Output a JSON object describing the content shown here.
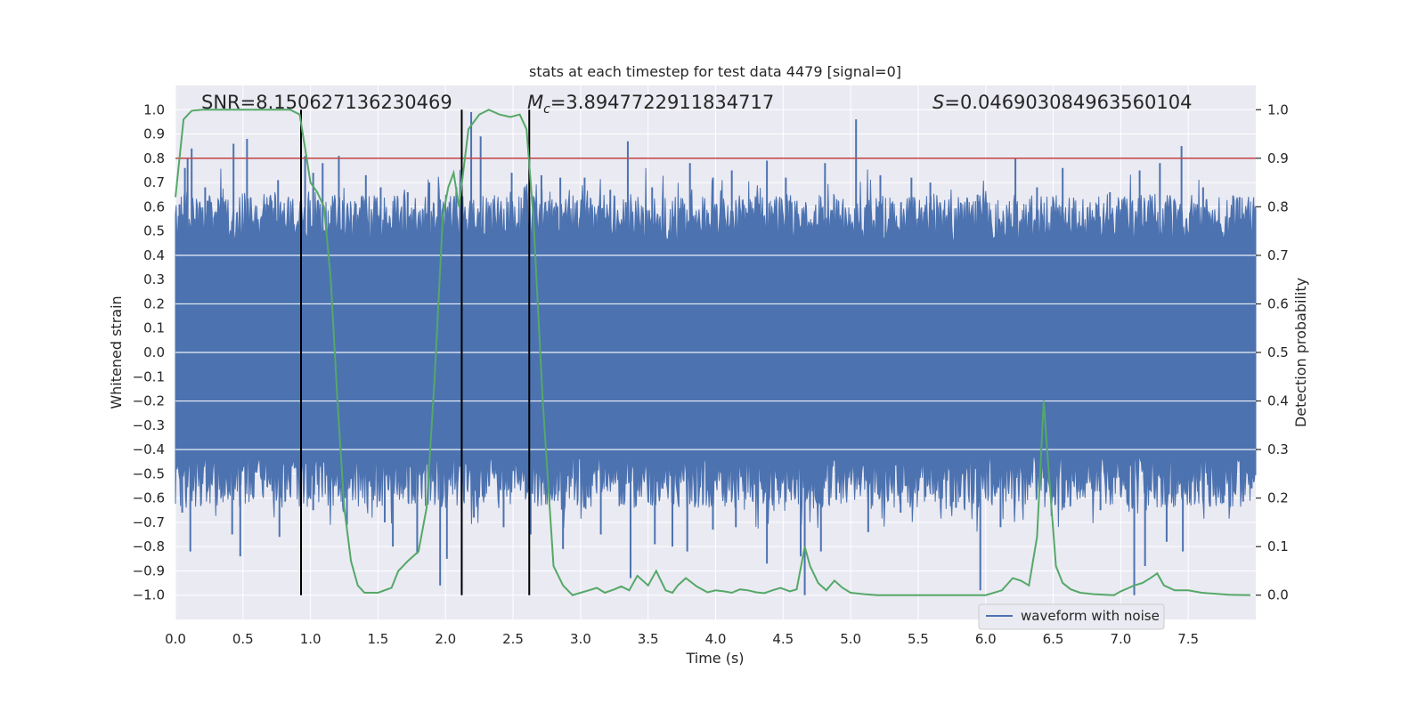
{
  "chart_data": {
    "type": "line",
    "title": "stats at each timestep for test data 4479 [signal=0]",
    "xlabel": "Time (s)",
    "ylabel": "Whitened strain",
    "y2label": "Detection probability",
    "xlim": [
      0,
      8
    ],
    "ylim": [
      -1.1,
      1.1
    ],
    "y2lim": [
      -0.05,
      1.05
    ],
    "xticks": [
      "0.0",
      "0.5",
      "1.0",
      "1.5",
      "2.0",
      "2.5",
      "3.0",
      "3.5",
      "4.0",
      "4.5",
      "5.0",
      "5.5",
      "6.0",
      "6.5",
      "7.0",
      "7.5"
    ],
    "yticks": [
      "1.0",
      "0.9",
      "0.8",
      "0.7",
      "0.6",
      "0.5",
      "0.4",
      "0.3",
      "0.2",
      "0.1",
      "0.0",
      "-0.1",
      "-0.2",
      "-0.3",
      "-0.4",
      "-0.5",
      "-0.6",
      "-0.7",
      "-0.8",
      "-0.9",
      "-1.0"
    ],
    "y2ticks": [
      "1.0",
      "0.9",
      "0.8",
      "0.7",
      "0.6",
      "0.5",
      "0.4",
      "0.3",
      "0.2",
      "0.1",
      "0.0"
    ],
    "grid": true,
    "legend": {
      "placement": "lower-right",
      "entries": [
        {
          "label": "waveform with noise",
          "color": "#4c72b0"
        }
      ]
    },
    "annotations": {
      "snr_prefix": "SNR=",
      "snr": "8.150627136230469",
      "mc_symbol": "M",
      "mc_sub": "c",
      "mc_value": "=3.8947722911834717",
      "s_symbol": "S",
      "s_value": "=0.046903084963560104"
    },
    "threshold": {
      "axis": "right",
      "value": 0.9,
      "color": "#c44e52"
    },
    "vlines": [
      0.93,
      2.12,
      2.62
    ],
    "series": [
      {
        "name": "waveform with noise",
        "axis": "left",
        "color": "#4c72b0",
        "kind": "noise-envelope",
        "core_band": [
          -0.4,
          0.4
        ],
        "typical_band": [
          -0.6,
          0.6
        ],
        "peaks": [
          [
            0.03,
            0.61
          ],
          [
            0.07,
            0.76
          ],
          [
            0.09,
            0.8
          ],
          [
            0.12,
            0.84
          ],
          [
            0.22,
            0.68
          ],
          [
            0.34,
            0.64
          ],
          [
            0.43,
            0.86
          ],
          [
            0.53,
            0.88
          ],
          [
            0.76,
            0.71
          ],
          [
            0.93,
            0.66
          ],
          [
            0.96,
            0.81
          ],
          [
            1.02,
            0.74
          ],
          [
            1.09,
            0.78
          ],
          [
            1.21,
            0.81
          ],
          [
            1.41,
            0.73
          ],
          [
            1.52,
            0.68
          ],
          [
            1.72,
            0.66
          ],
          [
            1.88,
            0.7
          ],
          [
            2.08,
            0.68
          ],
          [
            2.19,
            0.99
          ],
          [
            2.26,
            0.89
          ],
          [
            2.49,
            0.74
          ],
          [
            2.71,
            0.73
          ],
          [
            2.85,
            0.72
          ],
          [
            3.03,
            0.72
          ],
          [
            3.22,
            0.67
          ],
          [
            3.35,
            0.87
          ],
          [
            3.53,
            0.68
          ],
          [
            3.81,
            0.78
          ],
          [
            3.98,
            0.72
          ],
          [
            4.12,
            0.75
          ],
          [
            4.38,
            0.79
          ],
          [
            4.52,
            0.72
          ],
          [
            4.81,
            0.78
          ],
          [
            5.04,
            0.96
          ],
          [
            5.22,
            0.73
          ],
          [
            5.45,
            0.72
          ],
          [
            5.59,
            0.7
          ],
          [
            5.94,
            0.65
          ],
          [
            6.22,
            0.8
          ],
          [
            6.38,
            0.68
          ],
          [
            6.57,
            0.76
          ],
          [
            6.92,
            0.66
          ],
          [
            7.14,
            0.75
          ],
          [
            7.29,
            0.78
          ],
          [
            7.45,
            0.85
          ],
          [
            7.61,
            0.68
          ],
          [
            7.88,
            0.64
          ]
        ],
        "troughs": [
          [
            0.05,
            -0.66
          ],
          [
            0.11,
            -0.82
          ],
          [
            0.42,
            -0.75
          ],
          [
            0.48,
            -0.84
          ],
          [
            0.77,
            -0.76
          ],
          [
            0.93,
            -0.53
          ],
          [
            1.02,
            -0.65
          ],
          [
            1.27,
            -0.71
          ],
          [
            1.55,
            -0.7
          ],
          [
            1.61,
            -0.8
          ],
          [
            1.79,
            -0.83
          ],
          [
            1.96,
            -0.96
          ],
          [
            2.01,
            -0.85
          ],
          [
            2.12,
            -0.98
          ],
          [
            2.21,
            -0.68
          ],
          [
            2.43,
            -0.72
          ],
          [
            2.63,
            -0.75
          ],
          [
            2.87,
            -0.81
          ],
          [
            3.15,
            -0.75
          ],
          [
            3.37,
            -0.93
          ],
          [
            3.55,
            -0.79
          ],
          [
            3.68,
            -0.8
          ],
          [
            3.79,
            -0.82
          ],
          [
            3.98,
            -0.73
          ],
          [
            4.15,
            -0.72
          ],
          [
            4.38,
            -0.87
          ],
          [
            4.63,
            -0.84
          ],
          [
            4.66,
            -1.0
          ],
          [
            4.78,
            -0.82
          ],
          [
            5.13,
            -0.74
          ],
          [
            5.37,
            -0.66
          ],
          [
            5.78,
            -0.64
          ],
          [
            5.96,
            -0.98
          ],
          [
            6.11,
            -0.72
          ],
          [
            6.58,
            -0.64
          ],
          [
            6.85,
            -0.65
          ],
          [
            7.1,
            -1.0
          ],
          [
            7.18,
            -0.88
          ],
          [
            7.34,
            -0.78
          ],
          [
            7.46,
            -0.82
          ],
          [
            7.76,
            -0.62
          ],
          [
            7.97,
            -0.56
          ]
        ]
      },
      {
        "name": "",
        "axis": "right",
        "color": "#55a868",
        "x": [
          0.0,
          0.06,
          0.12,
          0.2,
          0.3,
          0.4,
          0.55,
          0.7,
          0.85,
          0.92,
          0.96,
          1.0,
          1.05,
          1.1,
          1.15,
          1.2,
          1.25,
          1.3,
          1.35,
          1.4,
          1.5,
          1.6,
          1.65,
          1.72,
          1.8,
          1.86,
          1.92,
          1.98,
          2.02,
          2.06,
          2.1,
          2.13,
          2.17,
          2.25,
          2.32,
          2.4,
          2.48,
          2.55,
          2.6,
          2.65,
          2.72,
          2.8,
          2.87,
          2.94,
          3.0,
          3.06,
          3.12,
          3.18,
          3.25,
          3.3,
          3.36,
          3.42,
          3.5,
          3.56,
          3.63,
          3.68,
          3.72,
          3.78,
          3.86,
          3.94,
          4.0,
          4.06,
          4.12,
          4.18,
          4.24,
          4.3,
          4.36,
          4.42,
          4.48,
          4.55,
          4.6,
          4.66,
          4.7,
          4.76,
          4.82,
          4.88,
          4.94,
          5.0,
          5.1,
          5.2,
          5.3,
          5.4,
          5.5,
          5.6,
          5.8,
          6.0,
          6.12,
          6.2,
          6.26,
          6.32,
          6.38,
          6.43,
          6.46,
          6.52,
          6.57,
          6.63,
          6.7,
          6.8,
          6.95,
          7.0,
          7.06,
          7.1,
          7.16,
          7.22,
          7.27,
          7.32,
          7.4,
          7.5,
          7.6,
          7.7,
          7.8,
          7.96
        ],
        "y": [
          0.82,
          0.98,
          0.998,
          1.0,
          1.0,
          1.0,
          1.0,
          1.0,
          1.0,
          0.99,
          0.92,
          0.85,
          0.83,
          0.8,
          0.65,
          0.4,
          0.18,
          0.07,
          0.02,
          0.005,
          0.005,
          0.015,
          0.05,
          0.07,
          0.09,
          0.18,
          0.45,
          0.78,
          0.84,
          0.87,
          0.8,
          0.87,
          0.96,
          0.99,
          1.0,
          0.99,
          0.985,
          0.99,
          0.96,
          0.78,
          0.4,
          0.06,
          0.02,
          0.0,
          0.005,
          0.01,
          0.015,
          0.005,
          0.012,
          0.018,
          0.01,
          0.04,
          0.02,
          0.05,
          0.01,
          0.005,
          0.02,
          0.035,
          0.018,
          0.006,
          0.01,
          0.008,
          0.005,
          0.012,
          0.01,
          0.006,
          0.004,
          0.01,
          0.015,
          0.008,
          0.012,
          0.1,
          0.06,
          0.025,
          0.01,
          0.03,
          0.015,
          0.005,
          0.002,
          0.0,
          0.0,
          0.0,
          0.0,
          0.0,
          0.0,
          0.0,
          0.01,
          0.035,
          0.03,
          0.02,
          0.12,
          0.4,
          0.28,
          0.06,
          0.025,
          0.012,
          0.005,
          0.002,
          0.0,
          0.008,
          0.015,
          0.02,
          0.025,
          0.035,
          0.045,
          0.02,
          0.01,
          0.01,
          0.005,
          0.003,
          0.001,
          0.0
        ]
      }
    ]
  }
}
